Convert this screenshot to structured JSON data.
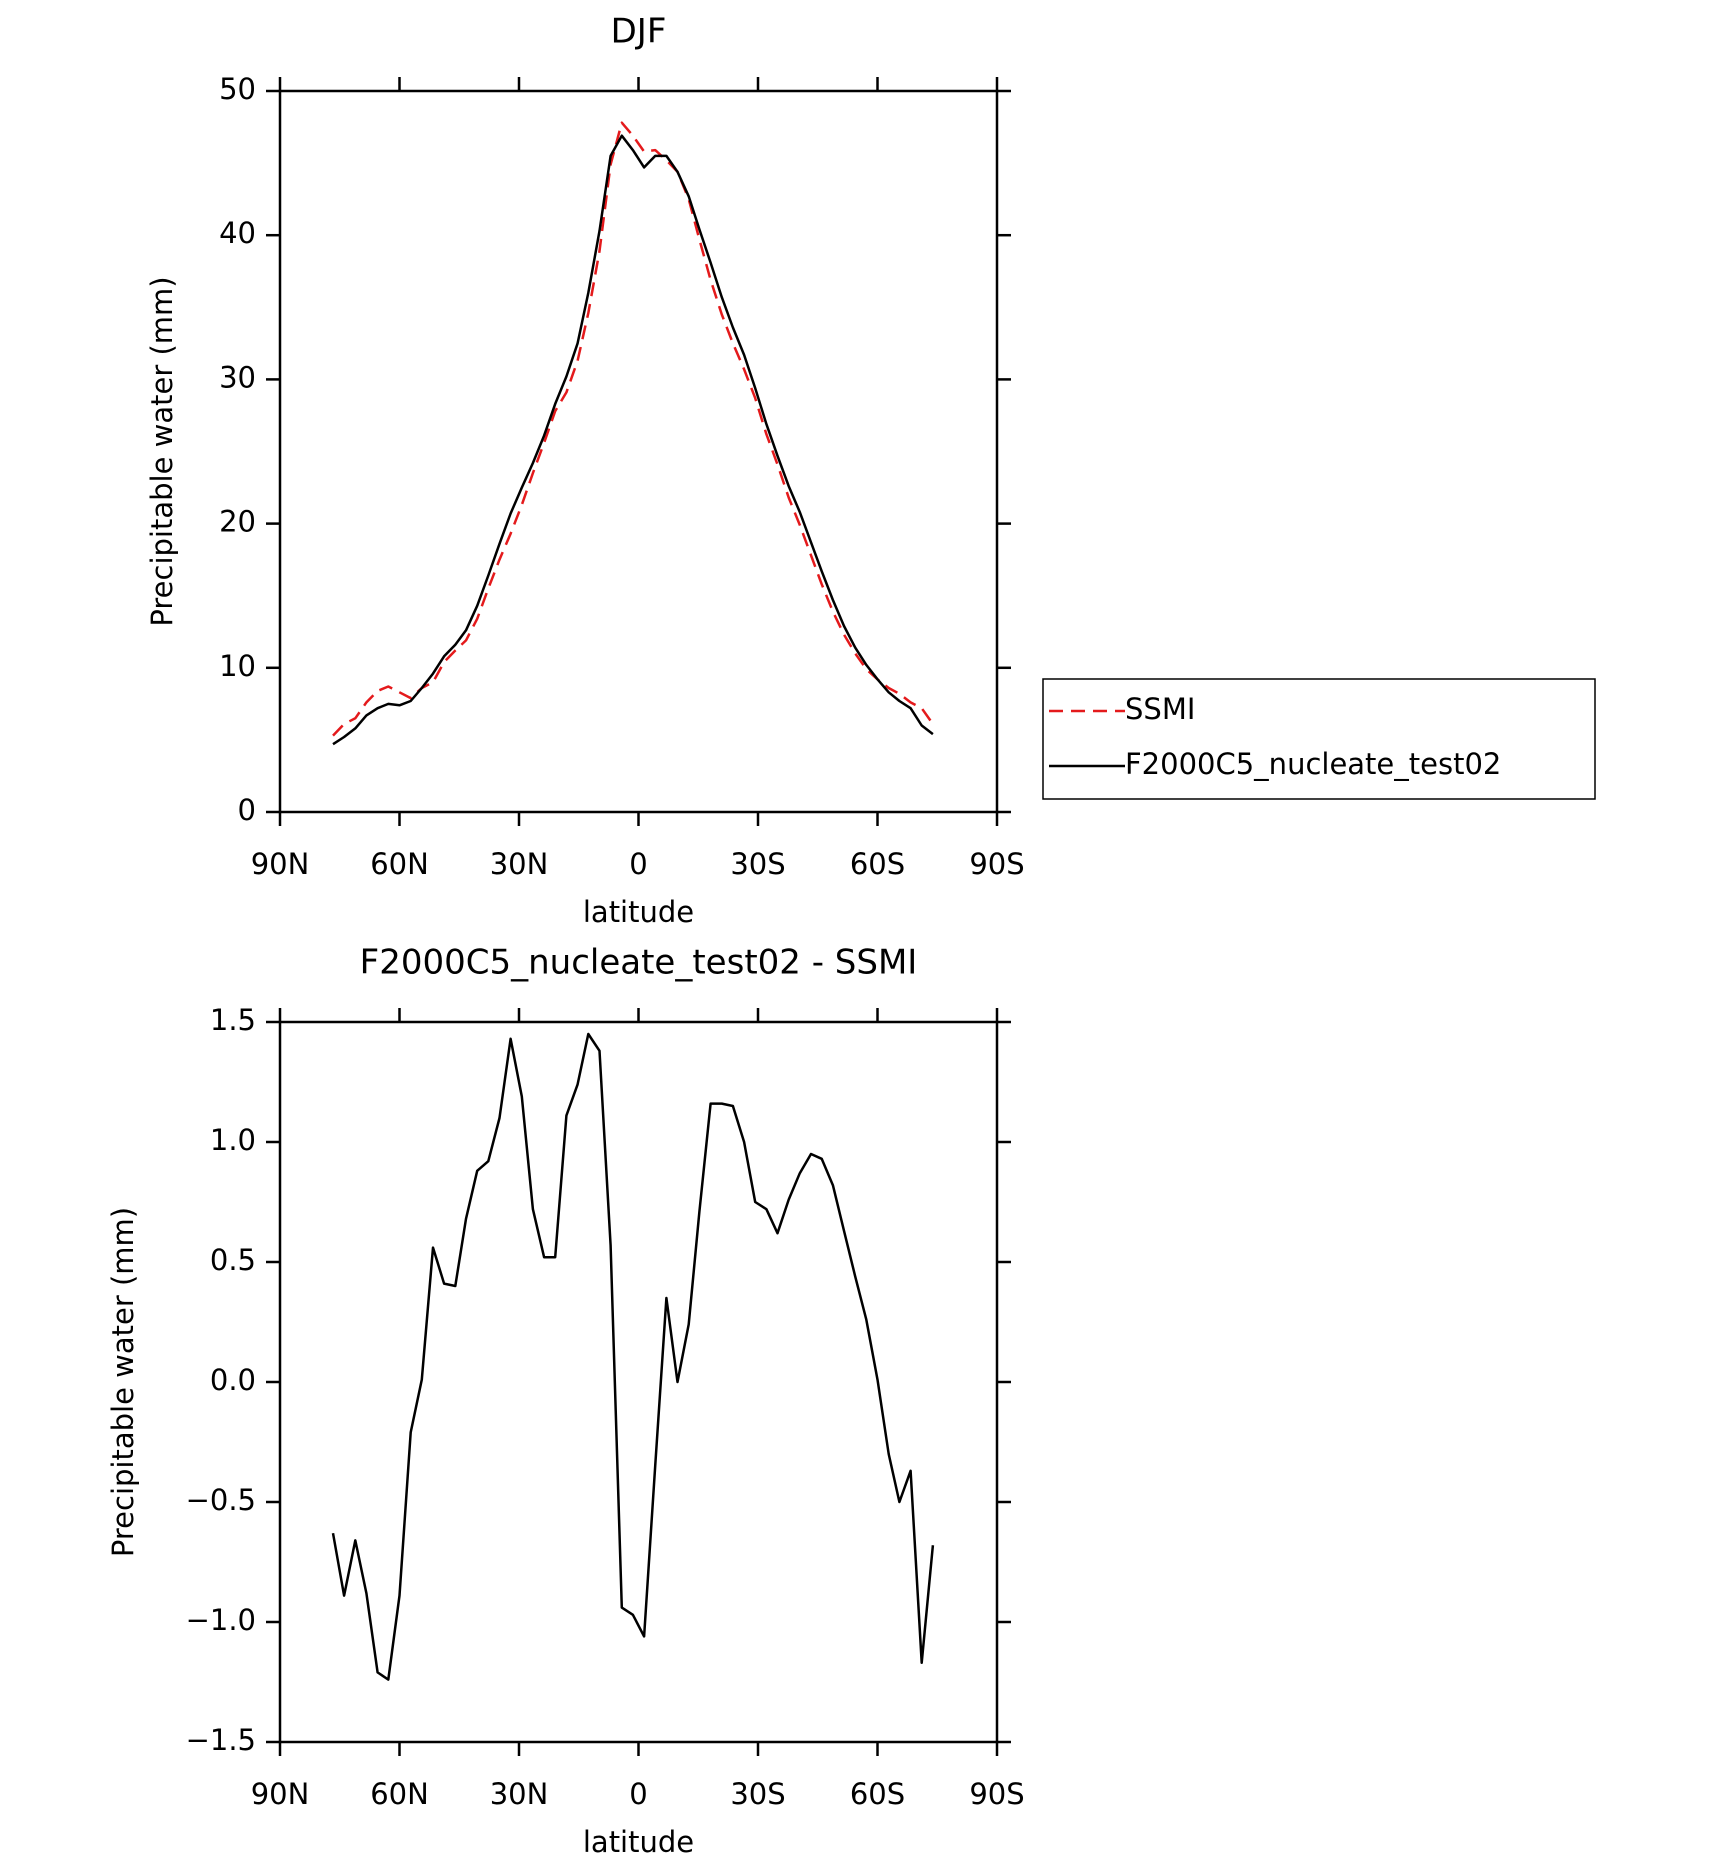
{
  "chart_data": [
    {
      "type": "line",
      "title": "DJF",
      "xlabel": "latitude",
      "ylabel": "Precipitable water (mm)",
      "x": [
        76.7,
        73.9,
        71.1,
        68.3,
        65.5,
        62.8,
        60.0,
        57.2,
        54.4,
        51.6,
        48.8,
        46.0,
        43.3,
        40.5,
        37.7,
        34.9,
        32.1,
        29.3,
        26.5,
        23.7,
        20.9,
        18.1,
        15.3,
        12.6,
        9.8,
        7.0,
        4.2,
        1.4,
        -1.4,
        -4.2,
        -7.0,
        -9.8,
        -12.6,
        -15.3,
        -18.1,
        -20.9,
        -23.7,
        -26.5,
        -29.3,
        -32.1,
        -34.9,
        -37.7,
        -40.5,
        -43.3,
        -46.0,
        -48.8,
        -51.6,
        -54.4,
        -57.2,
        -60.0,
        -62.8,
        -65.5,
        -68.3,
        -71.1,
        -73.9
      ],
      "series": [
        {
          "name": "SSMI",
          "color": "#e41a1c",
          "style": "dashed",
          "values": [
            5.3,
            6.1,
            6.5,
            7.6,
            8.4,
            8.7,
            8.3,
            7.9,
            8.6,
            9.0,
            10.4,
            11.2,
            11.9,
            13.4,
            15.5,
            17.5,
            19.3,
            21.3,
            23.5,
            25.6,
            27.8,
            29.1,
            31.3,
            34.6,
            38.9,
            44.9,
            47.8,
            46.9,
            45.8,
            45.9,
            45.2,
            44.4,
            42.5,
            39.7,
            36.9,
            34.5,
            32.5,
            30.7,
            28.7,
            26.2,
            24.1,
            21.8,
            19.9,
            17.8,
            15.8,
            13.9,
            12.3,
            11.0,
            9.9,
            9.2,
            8.6,
            8.2,
            7.6,
            7.2,
            6.1
          ]
        },
        {
          "name": "F2000C5_nucleate_test02",
          "color": "#000000",
          "style": "solid",
          "values": [
            4.7,
            5.2,
            5.8,
            6.7,
            7.2,
            7.5,
            7.4,
            7.7,
            8.6,
            9.6,
            10.8,
            11.6,
            12.6,
            14.3,
            16.4,
            18.6,
            20.7,
            22.5,
            24.2,
            26.1,
            28.3,
            30.2,
            32.5,
            36.0,
            40.3,
            45.5,
            46.9,
            45.9,
            44.7,
            45.5,
            45.5,
            44.4,
            42.7,
            40.4,
            38.1,
            35.7,
            33.6,
            31.7,
            29.4,
            26.9,
            24.7,
            22.6,
            20.8,
            18.7,
            16.7,
            14.7,
            12.9,
            11.4,
            10.2,
            9.2,
            8.3,
            7.7,
            7.2,
            6.0,
            5.4
          ]
        }
      ],
      "xlim": [
        90,
        -90
      ],
      "xticks": [
        {
          "value": 90,
          "label": "90N"
        },
        {
          "value": 60,
          "label": "60N"
        },
        {
          "value": 30,
          "label": "30N"
        },
        0,
        {
          "value": -30,
          "label": "30S"
        },
        {
          "value": -60,
          "label": "60S"
        },
        {
          "value": -90,
          "label": "90S"
        }
      ],
      "ylim": [
        0,
        50
      ],
      "yticks": [
        0,
        10,
        20,
        30,
        40,
        50
      ],
      "legend": "outside-right"
    },
    {
      "type": "line",
      "title": "F2000C5_nucleate_test02 - SSMI",
      "xlabel": "latitude",
      "ylabel": "Precipitable water (mm)",
      "x": [
        76.7,
        73.9,
        71.1,
        68.3,
        65.5,
        62.8,
        60.0,
        57.2,
        54.4,
        51.6,
        48.8,
        46.0,
        43.3,
        40.5,
        37.7,
        34.9,
        32.1,
        29.3,
        26.5,
        23.7,
        20.9,
        18.1,
        15.3,
        12.6,
        9.8,
        7.0,
        4.2,
        1.4,
        -1.4,
        -4.2,
        -7.0,
        -9.8,
        -12.6,
        -15.3,
        -18.1,
        -20.9,
        -23.7,
        -26.5,
        -29.3,
        -32.1,
        -34.9,
        -37.7,
        -40.5,
        -43.3,
        -46.0,
        -48.8,
        -51.6,
        -54.4,
        -57.2,
        -60.0,
        -62.8,
        -65.5,
        -68.3,
        -71.1,
        -73.9
      ],
      "values": [
        -0.63,
        -0.89,
        -0.66,
        -0.88,
        -1.21,
        -1.24,
        -0.89,
        -0.21,
        0.01,
        0.56,
        0.41,
        0.4,
        0.68,
        0.88,
        0.92,
        1.1,
        1.43,
        1.19,
        0.72,
        0.52,
        0.52,
        1.11,
        1.24,
        1.45,
        1.38,
        0.57,
        -0.94,
        -0.97,
        -1.06,
        -0.35,
        0.35,
        0.0,
        0.24,
        0.71,
        1.16,
        1.16,
        1.15,
        1.0,
        0.75,
        0.72,
        0.62,
        0.76,
        0.87,
        0.95,
        0.93,
        0.82,
        0.63,
        0.44,
        0.26,
        0.01,
        -0.3,
        -0.5,
        -0.37,
        -1.17,
        -0.68
      ],
      "color": "#000000",
      "xlim": [
        90,
        -90
      ],
      "xticks": [
        {
          "value": 90,
          "label": "90N"
        },
        {
          "value": 60,
          "label": "60N"
        },
        {
          "value": 30,
          "label": "30N"
        },
        0,
        {
          "value": -30,
          "label": "30S"
        },
        {
          "value": -60,
          "label": "60S"
        },
        {
          "value": -90,
          "label": "90S"
        }
      ],
      "ylim": [
        -1.5,
        1.5
      ],
      "yticks": [
        {
          "value": -1.5,
          "label": "−1.5"
        },
        {
          "value": -1.0,
          "label": "−1.0"
        },
        {
          "value": -0.5,
          "label": "−0.5"
        },
        {
          "value": 0,
          "label": "0.0"
        },
        0.5,
        {
          "value": 1.0,
          "label": "1.0"
        },
        1.5
      ]
    }
  ]
}
